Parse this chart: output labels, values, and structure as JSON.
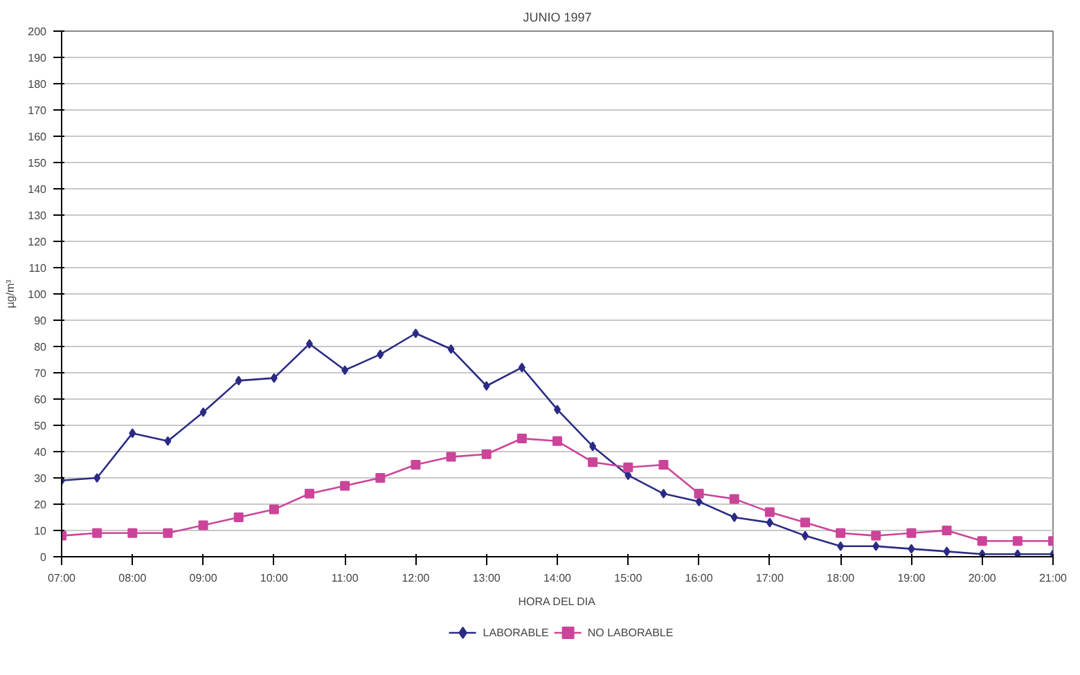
{
  "chart_data": {
    "type": "line",
    "title": "JUNIO 1997",
    "xlabel": "HORA DEL DIA",
    "ylabel": "µg/m³",
    "x": [
      7,
      7.5,
      8,
      8.5,
      9,
      9.5,
      10,
      10.5,
      11,
      11.5,
      12,
      12.5,
      13,
      13.5,
      14,
      14.5,
      15,
      15.5,
      16,
      16.5,
      17,
      17.5,
      18,
      18.5,
      19,
      19.5,
      20,
      20.5,
      21
    ],
    "series": [
      {
        "name": "LABORABLE",
        "color": "#2b2b86",
        "marker": "diamond",
        "values": [
          29,
          30,
          47,
          44,
          55,
          67,
          68,
          81,
          71,
          77,
          85,
          79,
          65,
          72,
          56,
          42,
          31,
          24,
          21,
          15,
          13,
          8,
          4,
          4,
          3,
          2,
          1,
          1,
          1
        ]
      },
      {
        "name": "NO LABORABLE",
        "color": "#cc4499",
        "marker": "square",
        "values": [
          8,
          9,
          9,
          9,
          12,
          15,
          18,
          24,
          27,
          30,
          35,
          38,
          39,
          45,
          44,
          36,
          34,
          35,
          24,
          22,
          17,
          13,
          9,
          8,
          9,
          10,
          6,
          6,
          6
        ]
      }
    ],
    "xlim": [
      7,
      21
    ],
    "ylim": [
      0,
      200
    ],
    "xticks": [
      {
        "value": 7,
        "label": "07:00"
      },
      {
        "value": 8,
        "label": "08:00"
      },
      {
        "value": 9,
        "label": "09:00"
      },
      {
        "value": 10,
        "label": "10:00"
      },
      {
        "value": 11,
        "label": "11:00"
      },
      {
        "value": 12,
        "label": "12:00"
      },
      {
        "value": 13,
        "label": "13:00"
      },
      {
        "value": 14,
        "label": "14:00"
      },
      {
        "value": 15,
        "label": "15:00"
      },
      {
        "value": 16,
        "label": "16:00"
      },
      {
        "value": 17,
        "label": "17:00"
      },
      {
        "value": 18,
        "label": "18:00"
      },
      {
        "value": 19,
        "label": "19:00"
      },
      {
        "value": 20,
        "label": "20:00"
      },
      {
        "value": 21,
        "label": "21:00"
      }
    ],
    "yticks": [
      0,
      10,
      20,
      30,
      40,
      50,
      60,
      70,
      80,
      90,
      100,
      110,
      120,
      130,
      140,
      150,
      160,
      170,
      180,
      190,
      200
    ],
    "grid": "y",
    "legend": "bottom",
    "line_style": "solid"
  }
}
